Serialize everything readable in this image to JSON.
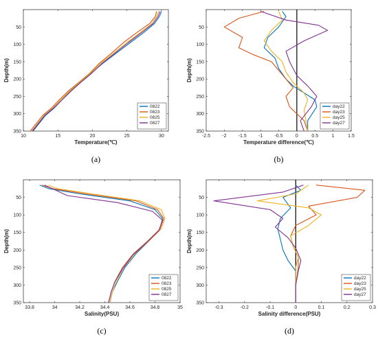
{
  "chart_data": [
    {
      "panel": "(a)",
      "type": "line",
      "xlabel": "Temperature(℃)",
      "ylabel": "Depth(m)",
      "xlim": [
        10,
        31
      ],
      "ylim": [
        0,
        350
      ],
      "y_reversed": true,
      "xticks": [
        10,
        15,
        20,
        25,
        30
      ],
      "yticks": [
        50,
        100,
        150,
        200,
        250,
        300,
        350
      ],
      "legend": "bottom-right",
      "series": [
        {
          "name": "0822",
          "color": "#0072BD",
          "x": [
            30.0,
            29.7,
            29.0,
            27.5,
            25.5,
            23.5,
            21.5,
            19.7,
            18.2,
            16.8,
            15.6,
            14.4,
            13.2,
            12.2,
            11.4
          ],
          "y": [
            5,
            20,
            40,
            65,
            95,
            125,
            155,
            185,
            210,
            235,
            260,
            285,
            305,
            330,
            350
          ]
        },
        {
          "name": "0823",
          "color": "#D95319",
          "x": [
            29.3,
            29.1,
            28.3,
            26.5,
            24.5,
            22.8,
            21.0,
            19.5,
            18.0,
            16.5,
            15.2,
            14.0,
            12.8,
            11.8,
            11.0
          ],
          "y": [
            5,
            20,
            40,
            65,
            95,
            125,
            155,
            185,
            210,
            235,
            260,
            285,
            305,
            330,
            350
          ]
        },
        {
          "name": "0825",
          "color": "#EDB120",
          "x": [
            29.6,
            29.3,
            28.6,
            27.0,
            25.0,
            23.1,
            21.2,
            19.6,
            18.1,
            16.7,
            15.4,
            14.2,
            13.0,
            12.0,
            11.2
          ],
          "y": [
            5,
            20,
            40,
            65,
            95,
            125,
            155,
            185,
            210,
            235,
            260,
            285,
            305,
            330,
            350
          ]
        },
        {
          "name": "0827",
          "color": "#7E2F8E",
          "x": [
            29.8,
            29.5,
            28.8,
            27.2,
            25.2,
            23.3,
            21.4,
            19.8,
            18.3,
            16.9,
            15.6,
            14.3,
            13.1,
            12.1,
            11.3
          ],
          "y": [
            5,
            20,
            40,
            65,
            95,
            125,
            155,
            185,
            210,
            235,
            260,
            285,
            305,
            330,
            350
          ]
        }
      ]
    },
    {
      "panel": "(b)",
      "type": "line",
      "xlabel": "Temperature difference(℃)",
      "ylabel": "Depth(m)",
      "xlim": [
        -2.5,
        1.5
      ],
      "ylim": [
        0,
        350
      ],
      "y_reversed": true,
      "xticks": [
        -2.5,
        -2,
        -1.5,
        -1,
        -0.5,
        0,
        0.5,
        1,
        1.5
      ],
      "yticks": [
        50,
        100,
        150,
        200,
        250,
        300,
        350
      ],
      "zero_line": true,
      "legend": "bottom-right",
      "series": [
        {
          "name": "day22",
          "color": "#0072BD",
          "x": [
            -0.4,
            -0.3,
            -0.5,
            -0.8,
            -0.9,
            -0.6,
            -0.5,
            -0.3,
            -0.1,
            0.2,
            0.5,
            0.55,
            0.3,
            0.3
          ],
          "y": [
            5,
            20,
            50,
            80,
            110,
            140,
            170,
            200,
            220,
            240,
            260,
            280,
            320,
            350
          ]
        },
        {
          "name": "day23",
          "color": "#D95319",
          "x": [
            -0.9,
            -1.6,
            -2.0,
            -1.5,
            -1.6,
            -1.2,
            -0.7,
            -0.5,
            -0.3,
            -0.1,
            -0.3,
            -0.2,
            0.2,
            0.3
          ],
          "y": [
            5,
            25,
            50,
            80,
            110,
            130,
            150,
            175,
            200,
            225,
            250,
            280,
            320,
            350
          ]
        },
        {
          "name": "day25",
          "color": "#EDB120",
          "x": [
            -0.5,
            -0.4,
            -0.7,
            -0.9,
            -0.7,
            -0.4,
            -0.3,
            -0.1,
            0.2,
            0.3,
            0.2,
            0.25,
            0.3
          ],
          "y": [
            5,
            30,
            60,
            90,
            120,
            150,
            180,
            210,
            240,
            260,
            290,
            320,
            350
          ]
        },
        {
          "name": "day27",
          "color": "#7E2F8E",
          "x": [
            -1.0,
            -0.3,
            0.6,
            0.85,
            0.2,
            -0.3,
            -0.2,
            0.0,
            0.3,
            0.55,
            0.4,
            0.1,
            0.2
          ],
          "y": [
            5,
            30,
            45,
            60,
            90,
            120,
            150,
            190,
            220,
            250,
            280,
            320,
            350
          ]
        }
      ]
    },
    {
      "panel": "(c)",
      "type": "line",
      "xlabel": "Salinity(PSU)",
      "ylabel": "Depth(m)",
      "xlim": [
        33.75,
        35
      ],
      "ylim": [
        0,
        350
      ],
      "y_reversed": true,
      "xticks": [
        33.8,
        34,
        34.2,
        34.4,
        34.6,
        34.8,
        35
      ],
      "yticks": [
        50,
        100,
        150,
        200,
        250,
        300,
        350
      ],
      "legend": "bottom-right",
      "series": [
        {
          "name": "0822",
          "color": "#0072BD",
          "x": [
            33.88,
            33.95,
            34.2,
            34.6,
            34.8,
            34.86,
            34.84,
            34.75,
            34.65,
            34.56,
            34.5,
            34.46,
            34.44
          ],
          "y": [
            15,
            25,
            40,
            60,
            85,
            110,
            140,
            175,
            210,
            250,
            290,
            320,
            350
          ]
        },
        {
          "name": "0823",
          "color": "#D95319",
          "x": [
            33.9,
            33.98,
            34.25,
            34.65,
            34.82,
            34.87,
            34.84,
            34.74,
            34.63,
            34.54,
            34.48,
            34.45,
            34.43
          ],
          "y": [
            15,
            25,
            40,
            60,
            85,
            110,
            140,
            175,
            210,
            250,
            290,
            320,
            350
          ]
        },
        {
          "name": "0825",
          "color": "#EDB120",
          "x": [
            33.95,
            34.02,
            34.3,
            34.68,
            34.85,
            34.88,
            34.85,
            34.75,
            34.64,
            34.55,
            34.49,
            34.46,
            34.44
          ],
          "y": [
            15,
            25,
            40,
            60,
            85,
            110,
            140,
            175,
            210,
            250,
            290,
            320,
            350
          ]
        },
        {
          "name": "0827",
          "color": "#7E2F8E",
          "x": [
            33.92,
            33.98,
            34.1,
            34.5,
            34.78,
            34.86,
            34.83,
            34.73,
            34.62,
            34.54,
            34.48,
            34.45,
            34.43
          ],
          "y": [
            15,
            25,
            45,
            65,
            90,
            115,
            145,
            180,
            215,
            255,
            290,
            320,
            350
          ]
        }
      ]
    },
    {
      "panel": "(d)",
      "type": "line",
      "xlabel": "Salinity difference(PSU)",
      "ylabel": "Depth(m)",
      "xlim": [
        -0.35,
        0.3
      ],
      "ylim": [
        0,
        350
      ],
      "y_reversed": true,
      "xticks": [
        -0.3,
        -0.2,
        -0.1,
        0,
        0.1,
        0.2,
        0.3
      ],
      "yticks": [
        50,
        100,
        150,
        200,
        250,
        300,
        350
      ],
      "zero_line": true,
      "legend": "bottom-right",
      "series": [
        {
          "name": "day22",
          "color": "#0072BD",
          "x": [
            0.0,
            0.02,
            -0.05,
            -0.02,
            -0.06,
            -0.07,
            -0.06,
            -0.05,
            -0.03,
            0.0,
            0.0,
            0.0
          ],
          "y": [
            15,
            30,
            50,
            80,
            110,
            140,
            170,
            200,
            230,
            260,
            300,
            350
          ]
        },
        {
          "name": "day23",
          "color": "#D95319",
          "x": [
            0.08,
            0.27,
            0.24,
            0.05,
            0.08,
            0.0,
            -0.02,
            -0.01,
            0.01,
            0.01,
            0.0,
            0.0
          ],
          "y": [
            15,
            30,
            50,
            75,
            100,
            130,
            160,
            190,
            220,
            250,
            300,
            350
          ]
        },
        {
          "name": "day25",
          "color": "#EDB120",
          "x": [
            0.05,
            0.0,
            -0.15,
            0.05,
            0.1,
            0.05,
            -0.02,
            -0.01,
            0.01,
            0.0,
            0.0,
            0.0
          ],
          "y": [
            15,
            40,
            60,
            80,
            100,
            130,
            160,
            190,
            220,
            250,
            300,
            350
          ]
        },
        {
          "name": "day27",
          "color": "#7E2F8E",
          "x": [
            0.03,
            -0.05,
            -0.32,
            -0.1,
            -0.05,
            -0.08,
            -0.03,
            0.0,
            0.02,
            0.01,
            0.0,
            0.0
          ],
          "y": [
            15,
            35,
            60,
            85,
            110,
            135,
            165,
            195,
            230,
            260,
            300,
            350
          ]
        }
      ]
    }
  ]
}
